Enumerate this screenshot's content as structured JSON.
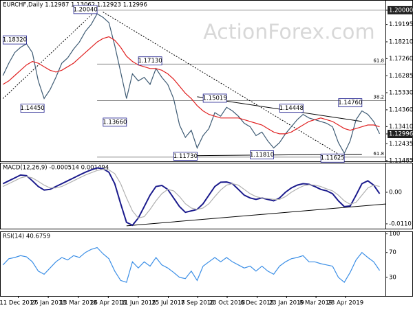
{
  "watermark": "ActionForex.com",
  "chart_data": [
    {
      "type": "line",
      "title": "EURCHF,Daily  1.12987 1.13062 1.12923 1.12996",
      "xlim": [
        -0.5,
        65
      ],
      "ylim": [
        1.1144,
        1.2058
      ],
      "yticks": [
        {
          "value": 1.2,
          "label": "1.20000"
        },
        1.19195,
        {
          "value": 1.1821,
          "label": "1.18210"
        },
        {
          "value": 1.1726,
          "label": "1.17260"
        },
        1.16285,
        {
          "value": 1.1533,
          "label": "1.15330"
        },
        {
          "value": 1.1436,
          "label": "1.14360"
        },
        {
          "value": 1.1341,
          "label": "1.13410"
        },
        1.12996,
        1.12435,
        1.11485
      ],
      "series": [
        {
          "color": "#3d5a73",
          "values": [
            1.163,
            1.17,
            1.176,
            1.179,
            1.181,
            1.176,
            1.16,
            1.15,
            1.155,
            1.162,
            1.17,
            1.173,
            1.178,
            1.182,
            1.188,
            1.192,
            1.198,
            1.196,
            1.193,
            1.18,
            1.165,
            1.15,
            1.164,
            1.16,
            1.162,
            1.158,
            1.167,
            1.162,
            1.158,
            1.15,
            1.135,
            1.128,
            1.132,
            1.122,
            1.129,
            1.133,
            1.142,
            1.14,
            1.145,
            1.143,
            1.14,
            1.136,
            1.134,
            1.129,
            1.131,
            1.126,
            1.122,
            1.125,
            1.13,
            1.134,
            1.138,
            1.141,
            1.139,
            1.138,
            1.137,
            1.136,
            1.134,
            1.125,
            1.119,
            1.126,
            1.138,
            1.143,
            1.141,
            1.137,
            1.13
          ]
        },
        {
          "color": "#e02020",
          "values": [
            1.158,
            1.16,
            1.163,
            1.166,
            1.169,
            1.171,
            1.17,
            1.168,
            1.166,
            1.165,
            1.166,
            1.168,
            1.17,
            1.173,
            1.176,
            1.179,
            1.182,
            1.184,
            1.185,
            1.183,
            1.179,
            1.174,
            1.171,
            1.169,
            1.168,
            1.167,
            1.167,
            1.166,
            1.164,
            1.161,
            1.157,
            1.153,
            1.15,
            1.146,
            1.143,
            1.141,
            1.14,
            1.139,
            1.139,
            1.139,
            1.139,
            1.138,
            1.137,
            1.136,
            1.135,
            1.133,
            1.131,
            1.13,
            1.13,
            1.131,
            1.133,
            1.135,
            1.137,
            1.138,
            1.139,
            1.138,
            1.137,
            1.135,
            1.133,
            1.132,
            1.133,
            1.134,
            1.135,
            1.135,
            1.134
          ]
        }
      ],
      "annotations": [
        {
          "label": "1.20040",
          "x": 16,
          "value": 1.2004
        },
        {
          "label": "1.18320",
          "x": 4,
          "value": 1.1832
        },
        {
          "label": "1.14450",
          "x": 7,
          "value": 1.1445
        },
        {
          "label": "1.17130",
          "x": 27,
          "value": 1.1713
        },
        {
          "label": "1.13660",
          "x": 21,
          "value": 1.1366
        },
        {
          "label": "1.15019",
          "x": 38,
          "value": 1.15019
        },
        {
          "label": "1.11730",
          "x": 33,
          "value": 1.1173
        },
        {
          "label": "1.14448",
          "x": 51,
          "value": 1.14448
        },
        {
          "label": "1.11810",
          "x": 46,
          "value": 1.1181
        },
        {
          "label": "1.14760",
          "x": 61,
          "value": 1.1476
        },
        {
          "label": "1.11625",
          "x": 58,
          "value": 1.11625
        }
      ],
      "levels": [
        {
          "value": 1.2,
          "from": 16
        },
        {
          "label": "61.8",
          "value": 1.1695,
          "from": 16
        },
        {
          "label": "38.2",
          "value": 1.1488,
          "from": 16
        },
        {
          "label": "61.8",
          "value": 1.1168,
          "from": 16
        }
      ],
      "trendlines": [
        {
          "points": [
            [
              0,
              1.15
            ],
            [
              16,
              1.2004
            ]
          ],
          "dash": true
        },
        {
          "points": [
            [
              17,
              1.199
            ],
            [
              58,
              1.1165
            ]
          ],
          "dash": true
        },
        {
          "points": [
            [
              33,
              1.151
            ],
            [
              61,
              1.137
            ]
          ],
          "dash": false
        },
        {
          "points": [
            [
              29,
              1.1175
            ],
            [
              61,
              1.1185
            ]
          ],
          "dash": false
        }
      ]
    },
    {
      "type": "line",
      "title": "MACD(12,26,9) -0.000514 0.001494",
      "xlim": [
        -0.5,
        65
      ],
      "ylim": [
        -0.0127,
        0.0103
      ],
      "yticks": [
        {
          "value": 0,
          "label": "0.00"
        },
        -0.011015
      ],
      "series": [
        {
          "color": "#1a1a8c",
          "values": [
            0.003,
            0.004,
            0.005,
            0.006,
            0.0058,
            0.004,
            0.002,
            0.0008,
            0.001,
            0.002,
            0.003,
            0.004,
            0.005,
            0.006,
            0.007,
            0.0078,
            0.0085,
            0.0082,
            0.007,
            0.003,
            -0.004,
            -0.0105,
            -0.0115,
            -0.009,
            -0.005,
            -0.001,
            0.002,
            0.0024,
            0.001,
            -0.002,
            -0.005,
            -0.007,
            -0.0065,
            -0.006,
            -0.004,
            -0.001,
            0.002,
            0.0035,
            0.0036,
            0.003,
            0.001,
            -0.001,
            -0.002,
            -0.0025,
            -0.002,
            -0.0025,
            -0.003,
            -0.002,
            0,
            0.0015,
            0.0025,
            0.003,
            0.0028,
            0.002,
            0.001,
            0.0005,
            -0.0005,
            -0.003,
            -0.005,
            -0.0048,
            -0.001,
            0.003,
            0.004,
            0.0025,
            -0.0005
          ]
        },
        {
          "color": "#b0b0b0",
          "values": [
            0.002,
            0.003,
            0.004,
            0.005,
            0.0055,
            0.005,
            0.0038,
            0.0025,
            0.0015,
            0.0015,
            0.002,
            0.003,
            0.004,
            0.005,
            0.006,
            0.0068,
            0.0076,
            0.008,
            0.0078,
            0.0065,
            0.003,
            -0.002,
            -0.0065,
            -0.009,
            -0.0085,
            -0.006,
            -0.003,
            -0.0005,
            0.001,
            0.0005,
            -0.0015,
            -0.004,
            -0.0055,
            -0.006,
            -0.0055,
            -0.004,
            -0.0015,
            0.0008,
            0.0025,
            0.003,
            0.0025,
            0.001,
            -0.0005,
            -0.0015,
            -0.002,
            -0.0022,
            -0.0025,
            -0.0025,
            -0.0015,
            0,
            0.0012,
            0.0022,
            0.0026,
            0.0025,
            0.002,
            0.0012,
            0.0005,
            -0.001,
            -0.003,
            -0.0042,
            -0.0035,
            -0.001,
            0.0015,
            0.0025,
            0.002
          ]
        }
      ],
      "trendlines": [
        {
          "points": [
            [
              21,
              -0.0117
            ],
            [
              65,
              -0.0041
            ]
          ],
          "dash": false
        }
      ]
    },
    {
      "type": "line",
      "title": "RSI(14) 40.6759",
      "xlim": [
        -0.5,
        65
      ],
      "ylim": [
        0,
        104
      ],
      "yticks": [
        100,
        70,
        30
      ],
      "xticks": [
        {
          "value": 2.6,
          "label": "11 Dec 2017"
        },
        {
          "value": 7.7,
          "label": "26 Jan 2018"
        },
        {
          "value": 12.8,
          "label": "13 Mar 2018"
        },
        {
          "value": 17.9,
          "label": "26 Apr 2018"
        },
        {
          "value": 23,
          "label": "11 Jun 2018"
        },
        {
          "value": 28.1,
          "label": "25 Jul 2018"
        },
        {
          "value": 33.1,
          "label": "7 Sep 2018"
        },
        {
          "value": 38.1,
          "label": "23 Oct 2018"
        },
        {
          "value": 43.2,
          "label": "6 Dec 2018"
        },
        {
          "value": 48.2,
          "label": "23 Jan 2019"
        },
        {
          "value": 53.2,
          "label": "8 Mar 2019"
        },
        {
          "value": 58.2,
          "label": "23 Apr 2019"
        }
      ],
      "series": [
        {
          "color": "#3a8ee6",
          "values": [
            50,
            60,
            62,
            65,
            63,
            55,
            40,
            35,
            45,
            55,
            62,
            58,
            65,
            62,
            70,
            75,
            78,
            68,
            60,
            40,
            25,
            22,
            55,
            45,
            55,
            48,
            62,
            50,
            45,
            38,
            30,
            28,
            40,
            25,
            48,
            55,
            62,
            55,
            62,
            55,
            50,
            45,
            48,
            40,
            48,
            40,
            35,
            48,
            55,
            60,
            62,
            65,
            55,
            55,
            52,
            50,
            48,
            30,
            22,
            38,
            58,
            70,
            62,
            55,
            41
          ]
        }
      ]
    }
  ]
}
